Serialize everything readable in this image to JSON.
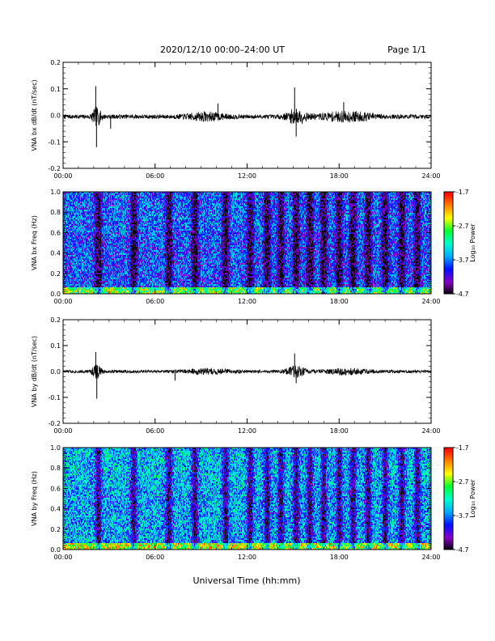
{
  "header": {
    "title": "2020/12/10  00:00–24:00 UT",
    "page": "Page 1/1"
  },
  "xlabel": "Universal Time (hh:mm)",
  "colors": {
    "trace": "#000000",
    "colormap": [
      "#000000",
      "#8a00c8",
      "#0010ff",
      "#00aaff",
      "#00ffd0",
      "#00ff30",
      "#ffff00",
      "#ff8000",
      "#ff0000"
    ]
  },
  "chart_data": [
    {
      "type": "line",
      "ylabel": "VNA bx dB/dt (nT/sec)",
      "x_ticks": [
        "00:00",
        "06:00",
        "12:00",
        "18:00",
        "24:00"
      ],
      "xlim": [
        0,
        24
      ],
      "ylim": [
        -0.2,
        0.2
      ],
      "y_ticks": [
        "0.2",
        "0.1",
        "0.0",
        "-0.1",
        "-0.2"
      ],
      "y_tick_values": [
        0.2,
        0.1,
        0.0,
        -0.1,
        -0.2
      ],
      "baseline": -0.005,
      "noise_amplitude": 0.008,
      "activity": [
        {
          "t": 2.2,
          "amp": 0.03,
          "width": 0.3
        },
        {
          "t": 9.3,
          "amp": 0.012,
          "width": 1.2
        },
        {
          "t": 15.2,
          "amp": 0.025,
          "width": 0.6
        },
        {
          "t": 18.5,
          "amp": 0.015,
          "width": 1.8
        }
      ],
      "spikes": [
        {
          "t": 2.13,
          "value": 0.11
        },
        {
          "t": 2.18,
          "value": -0.12
        },
        {
          "t": 3.1,
          "value": -0.05
        },
        {
          "t": 15.1,
          "value": 0.105
        },
        {
          "t": 15.2,
          "value": -0.08
        },
        {
          "t": 10.1,
          "value": 0.045
        },
        {
          "t": 18.3,
          "value": 0.05
        }
      ]
    },
    {
      "type": "heatmap",
      "ylabel": "VNA bx Freq (Hz)",
      "x_ticks": [
        "00:00",
        "06:00",
        "12:00",
        "18:00",
        "24:00"
      ],
      "xlim": [
        0,
        24
      ],
      "ylim": [
        0,
        1.0
      ],
      "y_ticks": [
        "1.0",
        "0.8",
        "0.6",
        "0.4",
        "0.2",
        "0.0"
      ],
      "y_tick_values": [
        1.0,
        0.8,
        0.6,
        0.4,
        0.2,
        0.0
      ],
      "colorbar": {
        "label": "Log₁₀ Power",
        "ticks": [
          "-1.7",
          "-2.7",
          "-3.7",
          "-4.7"
        ],
        "tick_values": [
          -1.7,
          -2.7,
          -3.7,
          -4.7
        ],
        "min": -4.7,
        "max": -1.7
      },
      "base_level": -3.85,
      "quiet_stripes_hours": [
        2.3,
        4.6,
        6.9,
        8.6,
        10.6,
        12.2,
        13.3,
        14.2,
        15.2,
        16.1,
        17.0,
        18.0,
        18.9,
        19.9,
        21.0,
        22.1,
        23.1
      ],
      "band_boost_below_hz": 0.06,
      "seed": 11
    },
    {
      "type": "line",
      "ylabel": "VNA by dB/dt (nT/sec)",
      "x_ticks": [
        "00:00",
        "06:00",
        "12:00",
        "18:00",
        "24:00"
      ],
      "xlim": [
        0,
        24
      ],
      "ylim": [
        -0.2,
        0.2
      ],
      "y_ticks": [
        "0.2",
        "0.1",
        "0.0",
        "-0.1",
        "-0.2"
      ],
      "y_tick_values": [
        0.2,
        0.1,
        0.0,
        -0.1,
        -0.2
      ],
      "baseline": 0.0,
      "noise_amplitude": 0.006,
      "activity": [
        {
          "t": 2.2,
          "amp": 0.025,
          "width": 0.3
        },
        {
          "t": 9.5,
          "amp": 0.008,
          "width": 1.5
        },
        {
          "t": 15.2,
          "amp": 0.02,
          "width": 0.6
        },
        {
          "t": 18.5,
          "amp": 0.008,
          "width": 1.5
        }
      ],
      "spikes": [
        {
          "t": 2.13,
          "value": 0.075
        },
        {
          "t": 2.2,
          "value": -0.105
        },
        {
          "t": 15.1,
          "value": 0.07
        },
        {
          "t": 15.2,
          "value": -0.045
        },
        {
          "t": 7.3,
          "value": -0.035
        }
      ]
    },
    {
      "type": "heatmap",
      "ylabel": "VNA by Freq (Hz)",
      "x_ticks": [
        "00:00",
        "06:00",
        "12:00",
        "18:00",
        "24:00"
      ],
      "xlim": [
        0,
        24
      ],
      "ylim": [
        0,
        1.0
      ],
      "y_ticks": [
        "1.0",
        "0.8",
        "0.6",
        "0.4",
        "0.2",
        "0.0"
      ],
      "y_tick_values": [
        1.0,
        0.8,
        0.6,
        0.4,
        0.2,
        0.0
      ],
      "colorbar": {
        "label": "Log₁₀ Power",
        "ticks": [
          "-1.7",
          "-2.7",
          "-3.7",
          "-4.7"
        ],
        "tick_values": [
          -1.7,
          -2.7,
          -3.7,
          -4.7
        ],
        "min": -4.7,
        "max": -1.7
      },
      "base_level": -3.55,
      "quiet_stripes_hours": [
        2.3,
        4.6,
        6.9,
        8.6,
        10.6,
        12.2,
        13.3,
        14.2,
        15.2,
        16.1,
        17.0,
        18.0,
        18.9,
        19.9,
        21.0,
        22.1,
        23.1
      ],
      "band_boost_below_hz": 0.06,
      "seed": 29
    }
  ]
}
